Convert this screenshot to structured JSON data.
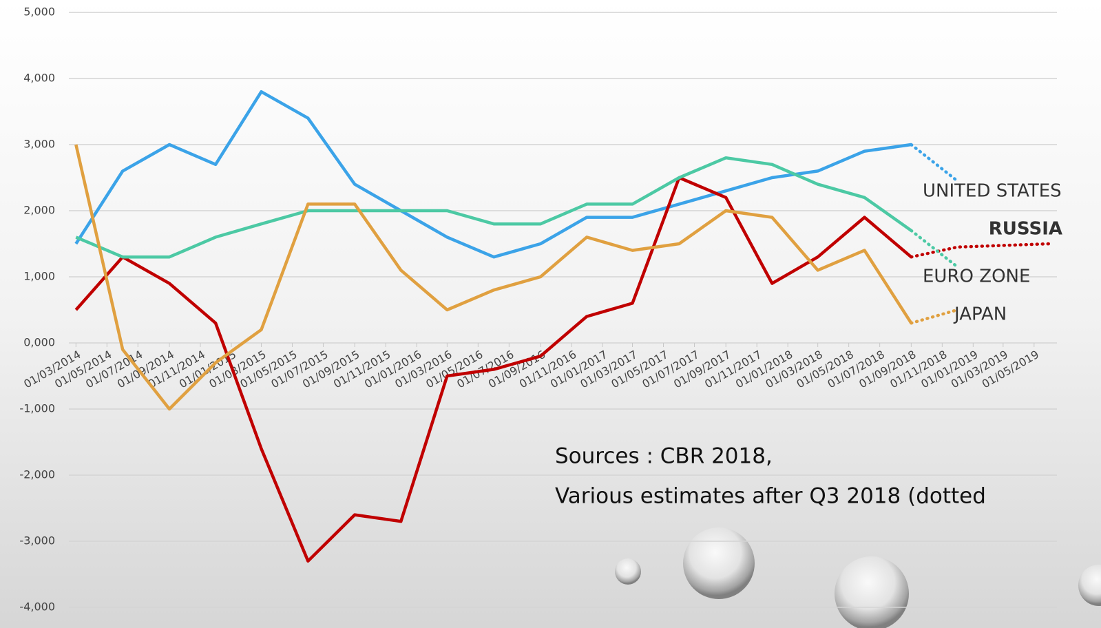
{
  "chart_data": {
    "type": "line",
    "xlim": [
      "2014-02-15",
      "2019-06-15"
    ],
    "xticks": [
      {
        "value": "2014-03-01",
        "label": "01/03/2014"
      },
      {
        "value": "2014-05-01",
        "label": "01/05/2014"
      },
      {
        "value": "2014-07-01",
        "label": "01/07/2014"
      },
      {
        "value": "2014-09-01",
        "label": "01/09/2014"
      },
      {
        "value": "2014-11-01",
        "label": "01/11/2014"
      },
      {
        "value": "2015-01-01",
        "label": "01/01/2015"
      },
      {
        "value": "2015-03-01",
        "label": "01/03/2015"
      },
      {
        "value": "2015-05-01",
        "label": "01/05/2015"
      },
      {
        "value": "2015-07-01",
        "label": "01/07/2015"
      },
      {
        "value": "2015-09-01",
        "label": "01/09/2015"
      },
      {
        "value": "2015-11-01",
        "label": "01/11/2015"
      },
      {
        "value": "2016-01-01",
        "label": "01/01/2016"
      },
      {
        "value": "2016-03-01",
        "label": "01/03/2016"
      },
      {
        "value": "2016-05-01",
        "label": "01/05/2016"
      },
      {
        "value": "2016-07-01",
        "label": "01/07/2016"
      },
      {
        "value": "2016-09-01",
        "label": "01/09/2016"
      },
      {
        "value": "2016-11-01",
        "label": "01/11/2016"
      },
      {
        "value": "2017-01-01",
        "label": "01/01/2017"
      },
      {
        "value": "2017-03-01",
        "label": "01/03/2017"
      },
      {
        "value": "2017-05-01",
        "label": "01/05/2017"
      },
      {
        "value": "2017-07-01",
        "label": "01/07/2017"
      },
      {
        "value": "2017-09-01",
        "label": "01/09/2017"
      },
      {
        "value": "2017-11-01",
        "label": "01/11/2017"
      },
      {
        "value": "2018-01-01",
        "label": "01/01/2018"
      },
      {
        "value": "2018-03-01",
        "label": "01/03/2018"
      },
      {
        "value": "2018-05-01",
        "label": "01/05/2018"
      },
      {
        "value": "2018-07-01",
        "label": "01/07/2018"
      },
      {
        "value": "2018-09-01",
        "label": "01/09/2018"
      },
      {
        "value": "2018-11-01",
        "label": "01/11/2018"
      },
      {
        "value": "2019-01-01",
        "label": "01/01/2019"
      },
      {
        "value": "2019-03-01",
        "label": "01/03/2019"
      },
      {
        "value": "2019-05-01",
        "label": "01/05/2019"
      }
    ],
    "ylim": [
      -4000,
      5000
    ],
    "yticks": [
      {
        "value": -4000,
        "label": "-4,000"
      },
      {
        "value": -3000,
        "label": "-3,000"
      },
      {
        "value": -2000,
        "label": "-2,000"
      },
      {
        "value": -1000,
        "label": "-1,000"
      },
      {
        "value": 0,
        "label": "0,000"
      },
      {
        "value": 1000,
        "label": "1,000"
      },
      {
        "value": 2000,
        "label": "2,000"
      },
      {
        "value": 3000,
        "label": "3,000"
      },
      {
        "value": 4000,
        "label": "4,000"
      },
      {
        "value": 5000,
        "label": "5,000"
      }
    ],
    "grid": true,
    "x": [
      "2014-03-01",
      "2014-06-01",
      "2014-09-01",
      "2014-12-01",
      "2015-03-01",
      "2015-06-01",
      "2015-09-01",
      "2015-12-01",
      "2016-03-01",
      "2016-06-01",
      "2016-09-01",
      "2016-12-01",
      "2017-03-01",
      "2017-06-01",
      "2017-09-01",
      "2017-12-01",
      "2018-03-01",
      "2018-06-01",
      "2018-09-01"
    ],
    "series": [
      {
        "name": "UNITED STATES",
        "color": "#3ba3e8",
        "values": [
          1500,
          2600,
          3000,
          2700,
          3800,
          3400,
          2400,
          2000,
          1600,
          1300,
          1500,
          1900,
          1900,
          2100,
          2300,
          2500,
          2600,
          2900,
          3000
        ],
        "estimates": {
          "x": [
            "2018-12-01"
          ],
          "values": [
            2450
          ]
        }
      },
      {
        "name": "RUSSIA",
        "color": "#c00000",
        "values": [
          500,
          1300,
          900,
          300,
          -1600,
          -3300,
          -2600,
          -2700,
          -500,
          -400,
          -200,
          400,
          600,
          2500,
          2200,
          900,
          1300,
          1900,
          1300
        ],
        "estimates": {
          "x": [
            "2018-12-01",
            "2019-06-01"
          ],
          "values": [
            1450,
            1500
          ]
        }
      },
      {
        "name": "EURO ZONE",
        "color": "#4cc9a4",
        "values": [
          1600,
          1300,
          1300,
          1600,
          1800,
          2000,
          2000,
          2000,
          2000,
          1800,
          1800,
          2100,
          2100,
          2500,
          2800,
          2700,
          2400,
          2200,
          1700
        ],
        "estimates": {
          "x": [
            "2018-12-01"
          ],
          "values": [
            1150
          ]
        }
      },
      {
        "name": "JAPAN",
        "color": "#e0a040",
        "values": [
          3000,
          -100,
          -1000,
          -300,
          200,
          2100,
          2100,
          1100,
          500,
          800,
          1000,
          1600,
          1400,
          1500,
          2000,
          1900,
          1100,
          1400,
          300
        ],
        "estimates": {
          "x": [
            "2018-12-01"
          ],
          "values": [
            500
          ]
        }
      }
    ],
    "annotations": [
      "Sources : CBR 2018,",
      "Various estimates after Q3 2018 (dotted"
    ]
  }
}
